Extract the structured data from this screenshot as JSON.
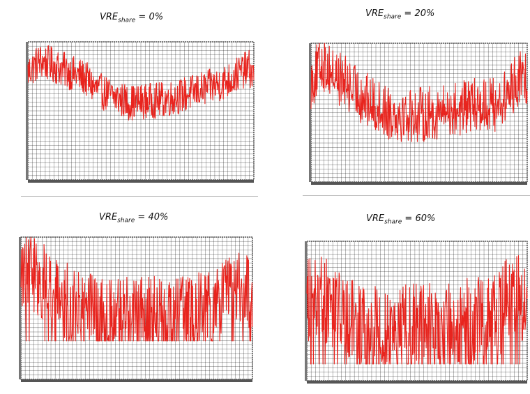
{
  "colors": {
    "series": "#e8241e",
    "grid": "#000000",
    "background": "#ffffff"
  },
  "chart_data": [
    {
      "type": "line",
      "title": {
        "prefix": "VRE",
        "subscript": "share",
        "suffix": " = 0%"
      },
      "grid": true,
      "ylim": [
        0,
        1
      ],
      "xlim": [
        0,
        1
      ],
      "profile": [
        [
          0,
          0.78
        ],
        [
          0.05,
          0.86
        ],
        [
          0.1,
          0.84
        ],
        [
          0.17,
          0.79
        ],
        [
          0.25,
          0.74
        ],
        [
          0.3,
          0.66
        ],
        [
          0.38,
          0.6
        ],
        [
          0.45,
          0.56
        ],
        [
          0.52,
          0.57
        ],
        [
          0.6,
          0.58
        ],
        [
          0.68,
          0.61
        ],
        [
          0.76,
          0.65
        ],
        [
          0.84,
          0.69
        ],
        [
          0.9,
          0.73
        ],
        [
          0.95,
          0.79
        ],
        [
          0.98,
          0.81
        ],
        [
          1,
          0.74
        ]
      ],
      "noise": 0.13,
      "floor": 0.0
    },
    {
      "type": "line",
      "title": {
        "prefix": "VRE",
        "subscript": "share",
        "suffix": " = 20%"
      },
      "grid": true,
      "ylim": [
        0,
        1
      ],
      "xlim": [
        0,
        1
      ],
      "profile": [
        [
          0,
          0.72
        ],
        [
          0.05,
          0.86
        ],
        [
          0.12,
          0.76
        ],
        [
          0.2,
          0.66
        ],
        [
          0.28,
          0.56
        ],
        [
          0.35,
          0.51
        ],
        [
          0.45,
          0.48
        ],
        [
          0.55,
          0.49
        ],
        [
          0.62,
          0.51
        ],
        [
          0.7,
          0.53
        ],
        [
          0.78,
          0.56
        ],
        [
          0.85,
          0.56
        ],
        [
          0.9,
          0.6
        ],
        [
          0.95,
          0.73
        ],
        [
          1,
          0.76
        ]
      ],
      "noise": 0.2,
      "floor": 0.0
    },
    {
      "type": "line",
      "title": {
        "prefix": "VRE",
        "subscript": "share",
        "suffix": " = 40%"
      },
      "grid": true,
      "ylim": [
        0,
        1
      ],
      "xlim": [
        0,
        1
      ],
      "profile": [
        [
          0,
          0.75
        ],
        [
          0.04,
          0.78
        ],
        [
          0.09,
          0.7
        ],
        [
          0.15,
          0.6
        ],
        [
          0.25,
          0.5
        ],
        [
          0.35,
          0.44
        ],
        [
          0.45,
          0.44
        ],
        [
          0.55,
          0.45
        ],
        [
          0.65,
          0.46
        ],
        [
          0.75,
          0.47
        ],
        [
          0.85,
          0.5
        ],
        [
          0.9,
          0.6
        ],
        [
          0.95,
          0.68
        ],
        [
          1,
          0.52
        ]
      ],
      "noise": 0.28,
      "floor": 0.27
    },
    {
      "type": "line",
      "title": {
        "prefix": "VRE",
        "subscript": "share",
        "suffix": " = 60%"
      },
      "grid": true,
      "ylim": [
        0,
        1
      ],
      "xlim": [
        0,
        1
      ],
      "profile": [
        [
          0,
          0.55
        ],
        [
          0.06,
          0.6
        ],
        [
          0.12,
          0.52
        ],
        [
          0.2,
          0.42
        ],
        [
          0.3,
          0.36
        ],
        [
          0.4,
          0.36
        ],
        [
          0.5,
          0.38
        ],
        [
          0.6,
          0.38
        ],
        [
          0.7,
          0.4
        ],
        [
          0.8,
          0.46
        ],
        [
          0.88,
          0.5
        ],
        [
          0.93,
          0.64
        ],
        [
          0.97,
          0.58
        ],
        [
          1,
          0.45
        ]
      ],
      "noise": 0.32,
      "floor": 0.12
    }
  ]
}
